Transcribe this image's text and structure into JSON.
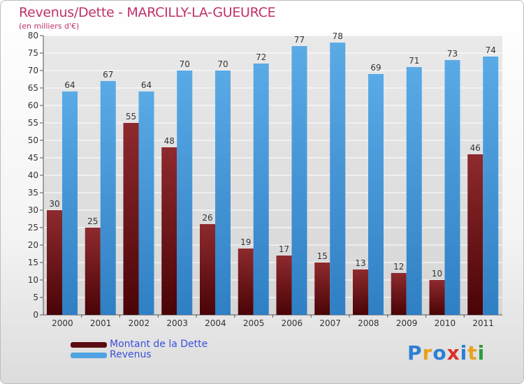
{
  "chart_data": {
    "type": "bar",
    "title": "Revenus/Dette - MARCILLY-LA-GUEURCE",
    "subtitle": "(en milliers d'€)",
    "categories": [
      "2000",
      "2001",
      "2002",
      "2003",
      "2004",
      "2005",
      "2006",
      "2007",
      "2008",
      "2009",
      "2010",
      "2011"
    ],
    "series": [
      {
        "name": "Montant de la Dette",
        "color": "#7a1a1f",
        "values": [
          30,
          25,
          55,
          48,
          26,
          19,
          17,
          15,
          13,
          12,
          10,
          46
        ]
      },
      {
        "name": "Revenus",
        "color": "#4fa3e3",
        "values": [
          64,
          67,
          64,
          70,
          70,
          72,
          77,
          78,
          69,
          71,
          73,
          74
        ]
      }
    ],
    "ylim": [
      0,
      80
    ],
    "yticks": [
      0,
      5,
      10,
      15,
      20,
      25,
      30,
      35,
      40,
      45,
      50,
      55,
      60,
      65,
      70,
      75,
      80
    ],
    "grid": true,
    "legend_position": "bottom-left"
  },
  "logo": {
    "letters": [
      "P",
      "r",
      "o",
      "x",
      "i",
      "t",
      "i"
    ],
    "colors": [
      "#2b7fd4",
      "#e8a21a",
      "#2b7fd4",
      "#d8312c",
      "#2b7fd4",
      "#e8a21a",
      "#2b9d3c"
    ]
  }
}
